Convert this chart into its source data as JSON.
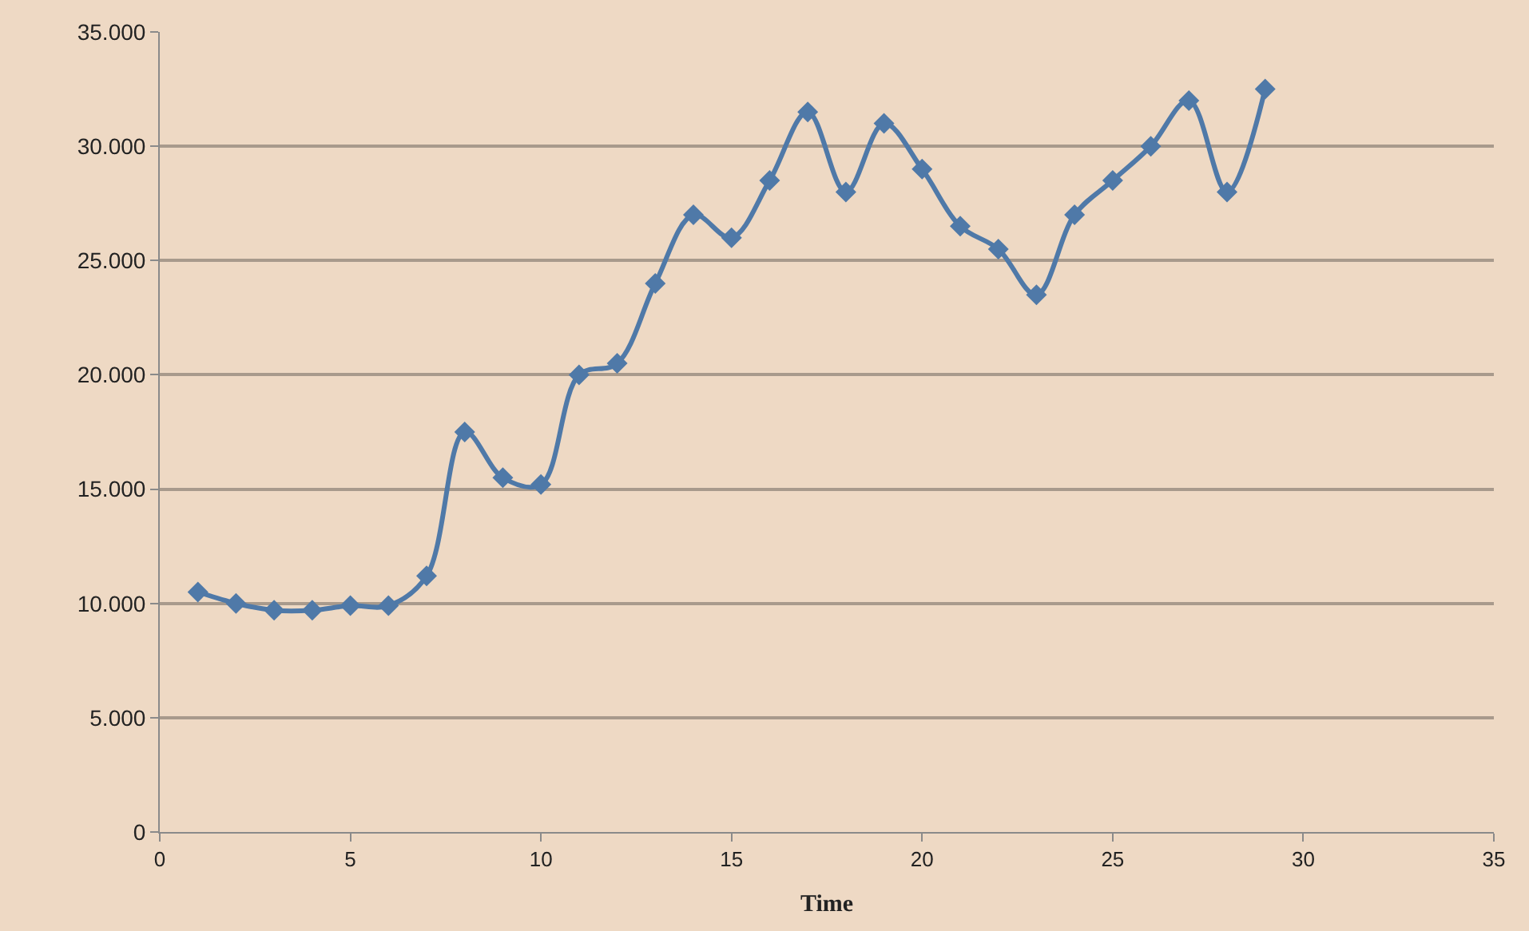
{
  "chart_data": {
    "type": "line",
    "xlabel": "Time",
    "x": [
      1,
      2,
      3,
      4,
      5,
      6,
      7,
      8,
      9,
      10,
      11,
      12,
      13,
      14,
      15,
      16,
      17,
      18,
      19,
      20,
      21,
      22,
      23,
      24,
      25,
      26,
      27,
      28,
      29
    ],
    "series": [
      {
        "color": "#4f79a8",
        "values": [
          10500,
          10000,
          9700,
          9700,
          9900,
          9900,
          11200,
          17500,
          15500,
          15200,
          20000,
          20500,
          24000,
          27000,
          26000,
          28500,
          31500,
          28000,
          31000,
          29000,
          26500,
          25500,
          23500,
          27000,
          28500,
          30000,
          32000,
          28000,
          32500
        ]
      }
    ],
    "xlim": [
      0,
      35
    ],
    "xticks": [
      0,
      5,
      10,
      15,
      20,
      25,
      30,
      35
    ],
    "ylim": [
      0,
      35000
    ],
    "yticks": [
      {
        "value": 0,
        "label": "0"
      },
      {
        "value": 5000,
        "label": "5.000"
      },
      {
        "value": 10000,
        "label": "10.000"
      },
      {
        "value": 15000,
        "label": "15.000"
      },
      {
        "value": 20000,
        "label": "20.000"
      },
      {
        "value": 25000,
        "label": "25.000"
      },
      {
        "value": 30000,
        "label": "30.000"
      },
      {
        "value": 35000,
        "label": "35.000"
      }
    ],
    "grid": "y",
    "legend": false,
    "marker": "diamond",
    "line_style": "solid"
  }
}
